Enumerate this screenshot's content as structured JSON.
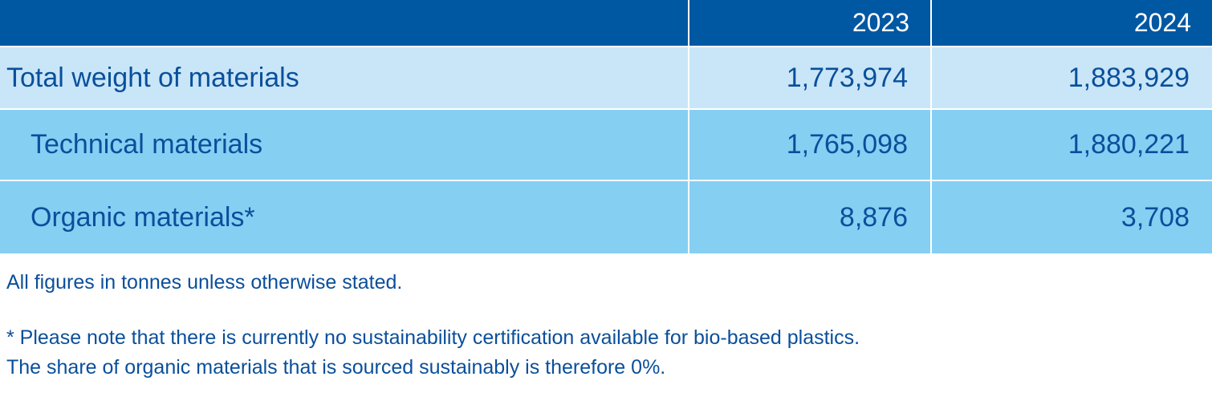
{
  "table": {
    "headers": [
      "2023",
      "2024"
    ],
    "rows": [
      [
        "Total weight of materials",
        "1,773,974",
        "1,883,929"
      ],
      [
        "Technical materials",
        "1,765,098",
        "1,880,221"
      ],
      [
        "Organic materials*",
        "8,876",
        "3,708"
      ]
    ]
  },
  "notes": [
    "All figures in tonnes unless otherwise stated.",
    "* Please note that there is currently no sustainability certification available for bio-based plastics.",
    "The share of organic materials that is sourced sustainably is therefore 0%."
  ]
}
